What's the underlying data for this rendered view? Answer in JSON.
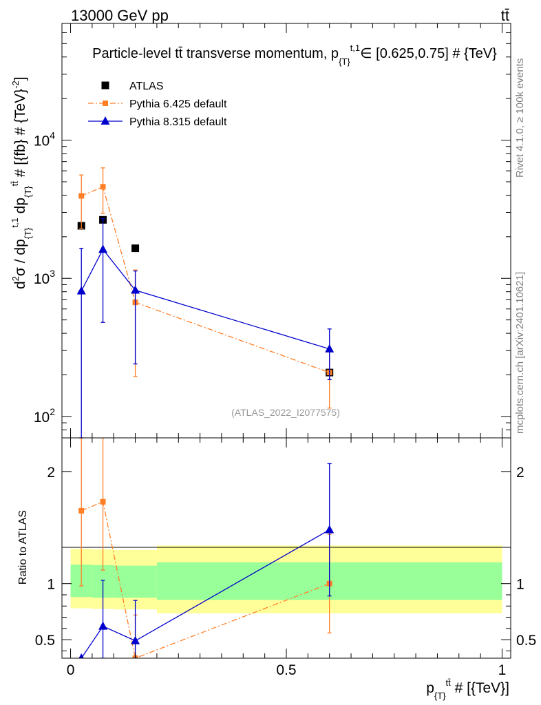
{
  "header": {
    "energy_label": "13000 GeV pp",
    "process_label": "tt̄",
    "title_main": "Particle-level tt̄ transverse momentum, p",
    "title_sub": "{T}",
    "title_sup": "t,1",
    "title_rest": "∈ [0.625,0.75] # {TeV}"
  },
  "side_text": {
    "rivet": "Rivet 4.1.0, ≥ 100k events",
    "mcplots": "mcplots.cern.ch [arXiv:2401.10621]"
  },
  "watermark": "(ATLAS_2022_I2077575)",
  "main_ylabel": "d²σ / dp{T}t,1 dp{T}tt̄ # [{fb} # {TeV}⁻²]",
  "ratio_ylabel": "Ratio to ATLAS",
  "xlabel": "p{T}tt̄ # [{TeV}]",
  "legend": [
    {
      "label": "ATLAS",
      "color": "#000000",
      "marker": "square",
      "line": "none"
    },
    {
      "label": "Pythia 6.425 default",
      "color": "#ff7f27",
      "marker": "small-square",
      "line": "dash-dot"
    },
    {
      "label": "Pythia 8.315 default",
      "color": "#0000cc",
      "marker": "triangle",
      "line": "solid"
    }
  ],
  "colors": {
    "atlas": "#000000",
    "pythia6": "#ff7f27",
    "pythia8": "#0000cc",
    "band_inner": "#99ff99",
    "band_outer": "#ffff99",
    "watermark": "#999999",
    "side_text": "#7f7f7f"
  },
  "chart_data": [
    {
      "type": "scatter",
      "title": "Particle-level tt̄ transverse momentum, p{T}t,1 ∈ [0.625,0.75] # {TeV}",
      "xlabel": "p{T}tt̄ # [{TeV}]",
      "ylabel": "d²σ / dp{T}t,1 dp{T}tt̄ # [{fb} # {TeV}⁻²]",
      "xlim": [
        -0.02,
        1.02
      ],
      "ylim": [
        70,
        70000
      ],
      "yscale": "log",
      "y_tick_labels": [
        {
          "mantissa": "10",
          "exp": "2",
          "value": 100
        },
        {
          "mantissa": "10",
          "exp": "3",
          "value": 1000
        },
        {
          "mantissa": "10",
          "exp": "4",
          "value": 10000
        }
      ],
      "series": [
        {
          "name": "ATLAS",
          "x": [
            0.025,
            0.075,
            0.15,
            0.6
          ],
          "y": [
            2400,
            2650,
            1650,
            208
          ]
        },
        {
          "name": "Pythia 6.425 default",
          "x": [
            0.025,
            0.075,
            0.15,
            0.6
          ],
          "y": [
            3950,
            4600,
            670,
            208
          ],
          "yerr_low": [
            2300,
            2950,
            195,
            115
          ],
          "yerr_high": [
            5600,
            6300,
            1150,
            300
          ]
        },
        {
          "name": "Pythia 8.315 default",
          "x": [
            0.025,
            0.075,
            0.15,
            0.6
          ],
          "y": [
            810,
            1620,
            820,
            308
          ],
          "yerr_low": [
            70,
            480,
            240,
            185
          ],
          "yerr_high": [
            1650,
            2700,
            1130,
            430
          ]
        }
      ]
    },
    {
      "type": "scatter",
      "title": "",
      "xlabel": "p{T}tt̄ # [{TeV}]",
      "ylabel": "Ratio to ATLAS",
      "xlim": [
        -0.02,
        1.02
      ],
      "ylim": [
        0.335,
        2.3
      ],
      "x_tick_labels": [
        "0",
        "0.5",
        "1"
      ],
      "x_ticks": [
        0,
        0.5,
        1
      ],
      "y_tick_labels": [
        "0.5",
        "1",
        "2"
      ],
      "y_ticks": [
        0.5,
        1,
        2
      ],
      "bands": [
        {
          "x0": 0.0,
          "x1": 0.05,
          "inner": [
            0.88,
            1.17
          ],
          "outer": [
            0.78,
            1.31
          ]
        },
        {
          "x0": 0.05,
          "x1": 0.1,
          "inner": [
            0.875,
            1.165
          ],
          "outer": [
            0.775,
            1.305
          ]
        },
        {
          "x0": 0.1,
          "x1": 0.2,
          "inner": [
            0.875,
            1.16
          ],
          "outer": [
            0.77,
            1.3
          ]
        },
        {
          "x0": 0.2,
          "x1": 1.0,
          "inner": [
            0.855,
            1.19
          ],
          "outer": [
            0.735,
            1.34
          ]
        }
      ],
      "series": [
        {
          "name": "Pythia 6.425 default",
          "x": [
            0.025,
            0.075,
            0.15,
            0.6
          ],
          "y": [
            1.65,
            1.73,
            0.335,
            1.0
          ],
          "yerr_low": [
            0.98,
            1.12,
            0.335,
            0.56
          ],
          "yerr_high": [
            2.34,
            2.37,
            0.72,
            1.44
          ]
        },
        {
          "name": "Pythia 8.315 default",
          "x": [
            0.025,
            0.075,
            0.15,
            0.6
          ],
          "y": [
            0.335,
            0.62,
            0.49,
            1.48
          ],
          "yerr_low": [
            0.335,
            0.335,
            0.335,
            0.89
          ],
          "yerr_high": [
            0.335,
            1.03,
            0.85,
            2.07
          ]
        }
      ]
    }
  ]
}
